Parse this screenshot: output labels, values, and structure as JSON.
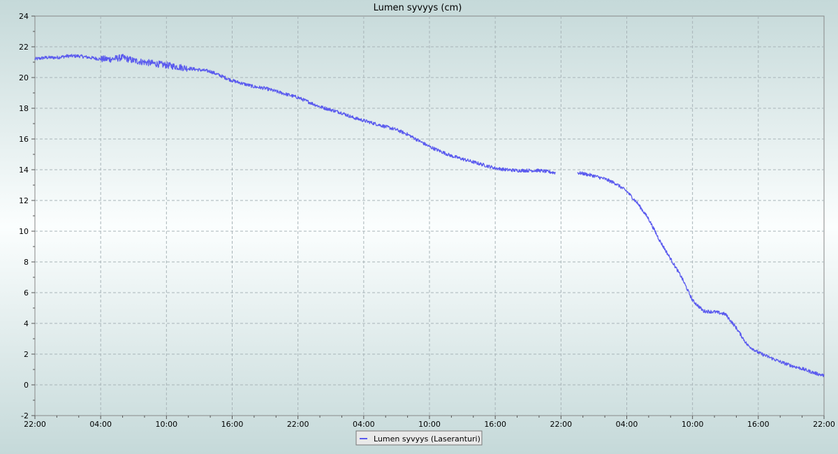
{
  "chart_data": {
    "type": "line",
    "title": "Lumen syvyys (cm)",
    "xlabel": "",
    "ylabel": "",
    "ylim": [
      -2,
      24
    ],
    "xlim": [
      0,
      72
    ],
    "y_ticks": [
      -2,
      0,
      2,
      4,
      6,
      8,
      10,
      12,
      14,
      16,
      18,
      20,
      22,
      24
    ],
    "x_ticks": [
      {
        "x": 0,
        "label": "22:00"
      },
      {
        "x": 6,
        "label": "04:00"
      },
      {
        "x": 12,
        "label": "10:00"
      },
      {
        "x": 18,
        "label": "16:00"
      },
      {
        "x": 24,
        "label": "22:00"
      },
      {
        "x": 30,
        "label": "04:00"
      },
      {
        "x": 36,
        "label": "10:00"
      },
      {
        "x": 42,
        "label": "16:00"
      },
      {
        "x": 48,
        "label": "22:00"
      },
      {
        "x": 54,
        "label": "04:00"
      },
      {
        "x": 60,
        "label": "10:00"
      },
      {
        "x": 66,
        "label": "16:00"
      },
      {
        "x": 72,
        "label": "22:00"
      }
    ],
    "grid": true,
    "legend_position": "bottom-center",
    "series": [
      {
        "name": "Lumen syvyys (Laseranturi)",
        "color": "#5a5aee",
        "segments": [
          [
            [
              0,
              21.2
            ],
            [
              1,
              21.3
            ],
            [
              2,
              21.3
            ],
            [
              3,
              21.4
            ],
            [
              4,
              21.4
            ],
            [
              5,
              21.3
            ],
            [
              6,
              21.2
            ],
            [
              7,
              21.2
            ],
            [
              8,
              21.3
            ],
            [
              9,
              21.1
            ],
            [
              10,
              21.0
            ],
            [
              11,
              20.9
            ],
            [
              12,
              20.8
            ],
            [
              13,
              20.7
            ],
            [
              14,
              20.6
            ],
            [
              15,
              20.5
            ],
            [
              16,
              20.4
            ],
            [
              17,
              20.1
            ],
            [
              18,
              19.8
            ],
            [
              19,
              19.6
            ],
            [
              20,
              19.4
            ],
            [
              21,
              19.3
            ],
            [
              22,
              19.1
            ],
            [
              23,
              18.9
            ],
            [
              24,
              18.7
            ],
            [
              25,
              18.4
            ],
            [
              26,
              18.1
            ],
            [
              27,
              17.9
            ],
            [
              28,
              17.7
            ],
            [
              29,
              17.4
            ],
            [
              30,
              17.2
            ],
            [
              31,
              17.0
            ],
            [
              32,
              16.8
            ],
            [
              33,
              16.6
            ],
            [
              34,
              16.3
            ],
            [
              35,
              15.9
            ],
            [
              36,
              15.5
            ],
            [
              37,
              15.2
            ],
            [
              38,
              14.9
            ],
            [
              39,
              14.7
            ],
            [
              40,
              14.5
            ],
            [
              41,
              14.3
            ],
            [
              42,
              14.1
            ],
            [
              43,
              14.0
            ],
            [
              44,
              13.95
            ],
            [
              45,
              13.95
            ],
            [
              46,
              13.95
            ],
            [
              47.5,
              13.8
            ]
          ],
          [
            [
              49.5,
              13.8
            ],
            [
              50,
              13.75
            ],
            [
              51,
              13.6
            ],
            [
              52,
              13.4
            ],
            [
              53,
              13.1
            ],
            [
              54,
              12.6
            ],
            [
              55,
              11.8
            ],
            [
              56,
              10.8
            ],
            [
              57,
              9.4
            ],
            [
              58,
              8.2
            ],
            [
              59,
              7.0
            ],
            [
              60,
              5.5
            ],
            [
              61,
              4.8
            ],
            [
              62,
              4.75
            ],
            [
              63,
              4.6
            ],
            [
              64,
              3.7
            ],
            [
              65,
              2.6
            ],
            [
              66,
              2.1
            ],
            [
              67,
              1.8
            ],
            [
              68,
              1.5
            ],
            [
              69,
              1.25
            ],
            [
              70,
              1.05
            ],
            [
              71,
              0.8
            ],
            [
              72,
              0.6
            ]
          ]
        ]
      }
    ]
  }
}
